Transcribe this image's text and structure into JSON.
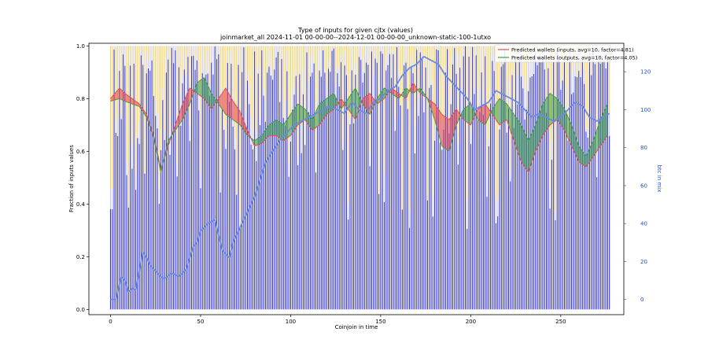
{
  "chart_data": {
    "type": "bar",
    "title": "Type of inputs for given cjtx (values)",
    "subtitle": "joinmarket_all 2024-11-01 00-00-00--2024-12-01 00-00-00_unknown-static-100-1utxo",
    "xlabel": "Coinjoin in time",
    "ylabel": "Fraction of inputs values",
    "y2label": "btc in mix",
    "xlim": [
      -12,
      285
    ],
    "ylim": [
      -0.02,
      1.01
    ],
    "y2lim": [
      -8,
      135
    ],
    "x_ticks": [
      0,
      50,
      100,
      150,
      200,
      250
    ],
    "y_ticks": [
      0.0,
      0.2,
      0.4,
      0.6,
      0.8,
      1.0
    ],
    "y2_ticks": [
      0,
      20,
      40,
      60,
      80,
      100,
      120
    ],
    "n_coinjoins": 278,
    "colors": {
      "bars_main": "#3030d0",
      "bars_top": "#f5d060",
      "bars_light": "#c8c8f0",
      "inputs_line": "#e05050",
      "outputs_line": "#40a040",
      "fill_red": "#e84040",
      "fill_green": "#3a9a3a",
      "btc_line": "#6a8ae0",
      "right_axis": "#1f4fd6"
    },
    "legend_position": "top-right",
    "series": [
      {
        "name": "Predicted wallets (inputs, avg=10, factor=4.81)",
        "x": [
          0,
          5,
          8,
          12,
          16,
          20,
          24,
          28,
          32,
          36,
          40,
          44,
          48,
          52,
          56,
          60,
          64,
          68,
          72,
          76,
          80,
          84,
          88,
          92,
          96,
          100,
          104,
          108,
          112,
          116,
          120,
          124,
          128,
          132,
          136,
          140,
          144,
          148,
          152,
          156,
          160,
          164,
          168,
          172,
          176,
          180,
          184,
          188,
          192,
          196,
          200,
          204,
          208,
          212,
          216,
          220,
          224,
          228,
          232,
          236,
          240,
          244,
          248,
          252,
          256,
          260,
          264,
          268,
          272,
          276
        ],
        "values": [
          0.8,
          0.84,
          0.82,
          0.8,
          0.78,
          0.74,
          0.66,
          0.53,
          0.62,
          0.7,
          0.78,
          0.84,
          0.82,
          0.8,
          0.76,
          0.8,
          0.84,
          0.79,
          0.75,
          0.68,
          0.62,
          0.63,
          0.66,
          0.66,
          0.64,
          0.66,
          0.7,
          0.72,
          0.68,
          0.7,
          0.74,
          0.76,
          0.8,
          0.76,
          0.72,
          0.8,
          0.82,
          0.78,
          0.8,
          0.84,
          0.82,
          0.8,
          0.86,
          0.82,
          0.8,
          0.78,
          0.74,
          0.72,
          0.76,
          0.72,
          0.7,
          0.76,
          0.78,
          0.74,
          0.7,
          0.72,
          0.64,
          0.56,
          0.52,
          0.6,
          0.66,
          0.7,
          0.72,
          0.68,
          0.62,
          0.56,
          0.54,
          0.58,
          0.62,
          0.66
        ]
      },
      {
        "name": "Predicted wallets (outputs, avg=10, factor=4.05)",
        "x": [
          0,
          5,
          8,
          12,
          16,
          20,
          24,
          28,
          32,
          36,
          40,
          44,
          48,
          52,
          56,
          60,
          64,
          68,
          72,
          76,
          80,
          84,
          88,
          92,
          96,
          100,
          104,
          108,
          112,
          116,
          120,
          124,
          128,
          132,
          136,
          140,
          144,
          148,
          152,
          156,
          160,
          164,
          168,
          172,
          176,
          180,
          184,
          188,
          192,
          196,
          200,
          204,
          208,
          212,
          216,
          220,
          224,
          228,
          232,
          236,
          240,
          244,
          248,
          252,
          256,
          260,
          264,
          268,
          272,
          276
        ],
        "values": [
          0.79,
          0.8,
          0.79,
          0.78,
          0.77,
          0.73,
          0.65,
          0.52,
          0.64,
          0.68,
          0.72,
          0.78,
          0.86,
          0.88,
          0.82,
          0.78,
          0.74,
          0.72,
          0.7,
          0.66,
          0.64,
          0.66,
          0.7,
          0.72,
          0.7,
          0.74,
          0.78,
          0.76,
          0.72,
          0.78,
          0.8,
          0.82,
          0.76,
          0.8,
          0.84,
          0.78,
          0.74,
          0.8,
          0.84,
          0.82,
          0.8,
          0.84,
          0.82,
          0.84,
          0.8,
          0.72,
          0.62,
          0.6,
          0.7,
          0.76,
          0.78,
          0.72,
          0.7,
          0.76,
          0.8,
          0.78,
          0.74,
          0.7,
          0.64,
          0.7,
          0.78,
          0.82,
          0.8,
          0.76,
          0.7,
          0.62,
          0.58,
          0.64,
          0.72,
          0.78
        ]
      },
      {
        "name": "btc in mix",
        "axis": "right",
        "x": [
          0,
          3,
          6,
          8,
          10,
          12,
          14,
          18,
          20,
          22,
          26,
          28,
          30,
          34,
          38,
          42,
          46,
          48,
          50,
          54,
          58,
          62,
          66,
          68,
          72,
          76,
          80,
          84,
          86,
          90,
          94,
          98,
          102,
          106,
          110,
          114,
          118,
          122,
          126,
          130,
          134,
          138,
          142,
          146,
          150,
          154,
          158,
          162,
          166,
          170,
          174,
          178,
          182,
          186,
          190,
          194,
          198,
          202,
          206,
          210,
          214,
          218,
          222,
          226,
          230,
          234,
          238,
          242,
          246,
          250,
          254,
          258,
          262,
          266,
          270,
          274,
          277
        ],
        "values": [
          0,
          0,
          12,
          10,
          4,
          6,
          5,
          25,
          22,
          18,
          14,
          12,
          11,
          14,
          12,
          16,
          28,
          30,
          36,
          40,
          42,
          26,
          22,
          30,
          38,
          46,
          54,
          66,
          72,
          78,
          84,
          88,
          92,
          94,
          96,
          98,
          100,
          102,
          100,
          98,
          104,
          100,
          98,
          104,
          106,
          110,
          112,
          118,
          122,
          124,
          128,
          126,
          124,
          118,
          114,
          110,
          106,
          100,
          102,
          104,
          110,
          108,
          106,
          104,
          100,
          96,
          98,
          96,
          94,
          96,
          100,
          104,
          102,
          96,
          94,
          96,
          98
        ]
      }
    ]
  }
}
